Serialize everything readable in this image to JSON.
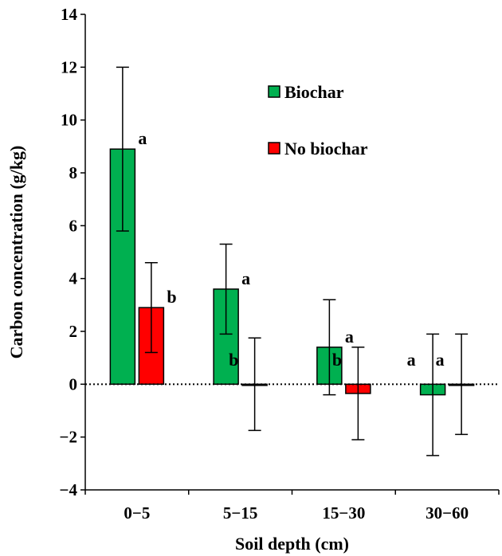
{
  "chart_data": {
    "type": "bar",
    "categories": [
      "0−5",
      "5−15",
      "15−30",
      "30−60"
    ],
    "xlabel": "Soil depth (cm)",
    "ylabel": "Carbon concentration (g/kg)",
    "ylim": [
      -4,
      14
    ],
    "yticks": [
      -4,
      -2,
      0,
      2,
      4,
      6,
      8,
      10,
      12,
      14
    ],
    "ytick_labels": [
      "−4",
      "−2",
      "0",
      "2",
      "4",
      "6",
      "8",
      "10",
      "12",
      "14"
    ],
    "grid": false,
    "legend_position": "top-right",
    "zero_line": "dotted",
    "series": [
      {
        "name": "Biochar",
        "color": "#00b050",
        "values": [
          8.9,
          3.6,
          1.4,
          -0.4
        ],
        "error": [
          3.1,
          1.7,
          1.8,
          2.3
        ],
        "labels": [
          "a",
          "a",
          "a",
          "a"
        ]
      },
      {
        "name": "No biochar",
        "color": "#ff0000",
        "values": [
          2.9,
          0.0,
          -0.35,
          0.0
        ],
        "error": [
          1.7,
          1.75,
          1.75,
          1.9
        ],
        "labels": [
          "b",
          "b",
          "b",
          "a"
        ]
      }
    ]
  }
}
